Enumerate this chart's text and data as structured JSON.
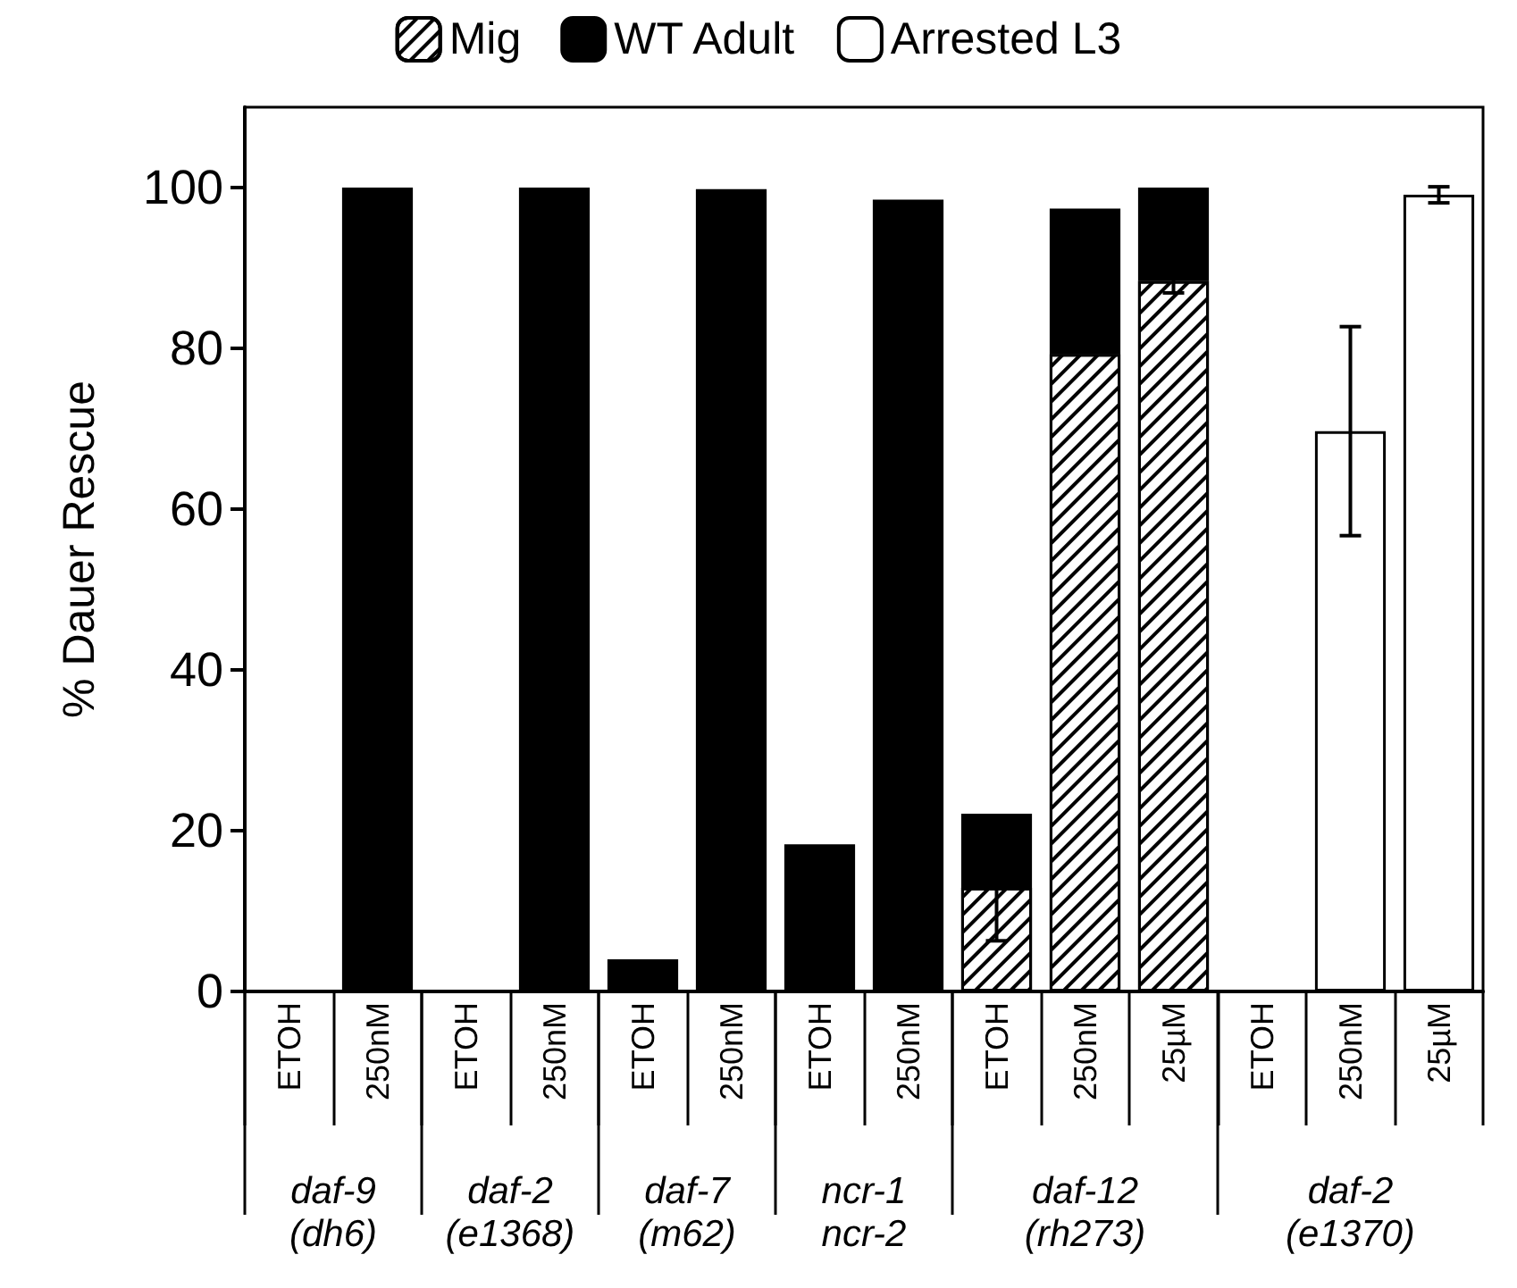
{
  "chart_data": {
    "type": "bar",
    "stacked": true,
    "ylabel": "% Dauer Rescue",
    "categories": [
      "ETOH",
      "250nM",
      "ETOH",
      "250nM",
      "ETOH",
      "250nM",
      "ETOH",
      "250nM",
      "ETOH",
      "250nM",
      "25µM",
      "ETOH",
      "250nM",
      "25µM"
    ],
    "annotations": [
      "daf-9\n(dh6)",
      "daf-2\n(e1368)",
      "daf-7\n(m62)",
      "ncr-1\nncr-2",
      "daf-12\n(rh273)",
      "daf-2\n(e1370)"
    ],
    "series": [
      {
        "name": "Mig",
        "color": "#000000",
        "values": [
          0,
          0,
          0,
          0,
          0,
          0,
          0,
          0,
          12.9,
          79.3,
          88.4,
          0,
          0,
          0
        ],
        "errors": [
          null,
          null,
          null,
          null,
          null,
          null,
          null,
          null,
          6.6,
          null,
          1.5,
          null,
          null,
          null
        ]
      },
      {
        "name": "WT Adult",
        "color": "#000000",
        "values": [
          0,
          100,
          0,
          100,
          4,
          99.8,
          18.3,
          98.5,
          9.2,
          18.1,
          11.6,
          0,
          0,
          0
        ]
      },
      {
        "name": "Arrested L3",
        "color": "#ffffff",
        "values": [
          0,
          0,
          0,
          0,
          0,
          0,
          0,
          0,
          0,
          0,
          0,
          0,
          69.7,
          99.1
        ],
        "errors": [
          null,
          null,
          null,
          null,
          null,
          null,
          null,
          null,
          null,
          null,
          null,
          null,
          13,
          1
        ]
      }
    ],
    "ylim": [
      0,
      110
    ],
    "yticks": [
      0,
      20,
      40,
      60,
      80,
      100
    ],
    "legend": "top",
    "grid": false
  }
}
